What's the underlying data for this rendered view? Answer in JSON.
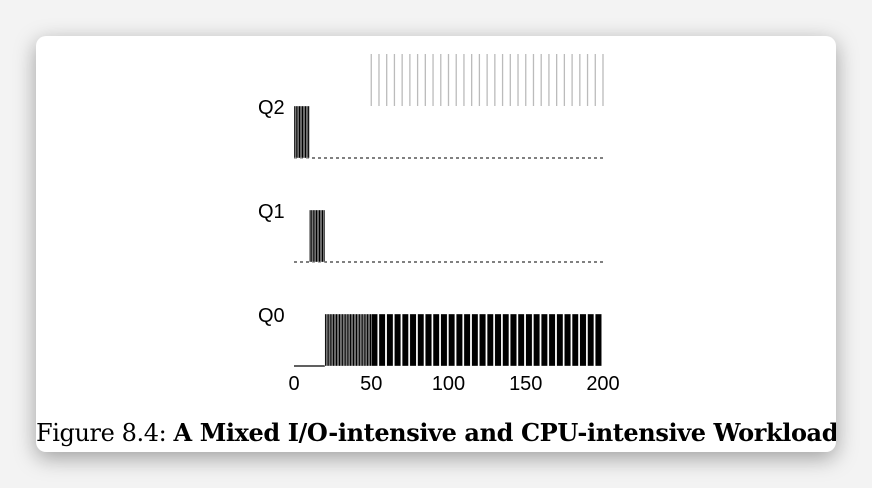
{
  "figure": {
    "caption_prefix": "Figure 8.4:",
    "caption_title": "A Mixed I/O-intensive and CPU-intensive Workload"
  },
  "chart_data": {
    "type": "bar",
    "title": "",
    "xlabel": "",
    "ylabel": "",
    "xlim": [
      0,
      200
    ],
    "x_ticks": [
      "0",
      "50",
      "100",
      "150",
      "200"
    ],
    "queues": [
      "Q2",
      "Q1",
      "Q0"
    ],
    "bar_color": "#000000",
    "tick_line_color": "#bbbbbb",
    "series": [
      {
        "queue": "Q2",
        "bars": [
          {
            "x": 0
          },
          {
            "x": 1
          },
          {
            "x": 2
          },
          {
            "x": 3
          },
          {
            "x": 4
          },
          {
            "x": 5
          },
          {
            "x": 6
          },
          {
            "x": 7
          },
          {
            "x": 8
          },
          {
            "x": 9
          }
        ]
      },
      {
        "queue": "Q1",
        "bars": [
          {
            "x": 10
          },
          {
            "x": 11
          },
          {
            "x": 12
          },
          {
            "x": 13
          },
          {
            "x": 14
          },
          {
            "x": 15
          },
          {
            "x": 16
          },
          {
            "x": 17
          },
          {
            "x": 18
          },
          {
            "x": 19
          }
        ]
      },
      {
        "queue": "Q0",
        "bars": [
          {
            "x": 20
          },
          {
            "x": 21
          },
          {
            "x": 22
          },
          {
            "x": 23
          },
          {
            "x": 24
          },
          {
            "x": 25
          },
          {
            "x": 26
          },
          {
            "x": 27
          },
          {
            "x": 28
          },
          {
            "x": 29
          },
          {
            "x": 30
          },
          {
            "x": 31
          },
          {
            "x": 32
          },
          {
            "x": 33
          },
          {
            "x": 34
          },
          {
            "x": 35
          },
          {
            "x": 36
          },
          {
            "x": 37
          },
          {
            "x": 38
          },
          {
            "x": 39
          },
          {
            "x": 40
          },
          {
            "x": 41
          },
          {
            "x": 42
          },
          {
            "x": 43
          },
          {
            "x": 44
          },
          {
            "x": 45
          },
          {
            "x": 46
          },
          {
            "x": 47
          },
          {
            "x": 48
          },
          {
            "x": 49
          },
          {
            "x": 50
          },
          {
            "x": 55
          },
          {
            "x": 60
          },
          {
            "x": 65
          },
          {
            "x": 70
          },
          {
            "x": 75
          },
          {
            "x": 80
          },
          {
            "x": 85
          },
          {
            "x": 90
          },
          {
            "x": 95
          },
          {
            "x": 100
          },
          {
            "x": 105
          },
          {
            "x": 110
          },
          {
            "x": 115
          },
          {
            "x": 120
          },
          {
            "x": 125
          },
          {
            "x": 130
          },
          {
            "x": 135
          },
          {
            "x": 140
          },
          {
            "x": 145
          },
          {
            "x": 150
          },
          {
            "x": 155
          },
          {
            "x": 160
          },
          {
            "x": 165
          },
          {
            "x": 170
          },
          {
            "x": 175
          },
          {
            "x": 180
          },
          {
            "x": 185
          },
          {
            "x": 190
          },
          {
            "x": 195
          }
        ]
      }
    ],
    "io_job_bursts_x": [
      50,
      55,
      60,
      65,
      70,
      75,
      80,
      85,
      90,
      95,
      100,
      105,
      110,
      115,
      120,
      125,
      130,
      135,
      140,
      145,
      150,
      155,
      160,
      165,
      170,
      175,
      180,
      185,
      190,
      195,
      200
    ]
  }
}
